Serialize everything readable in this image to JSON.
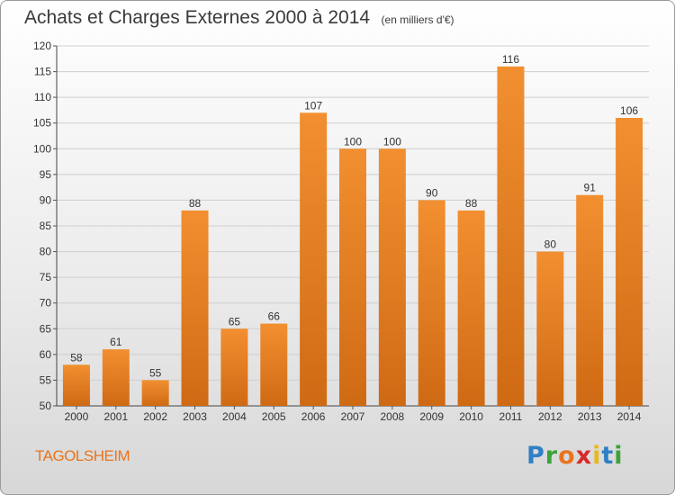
{
  "title": "Achats et Charges Externes 2000 à 2014",
  "unit_note": "(en milliers d'€)",
  "city": "TAGOLSHEIM",
  "logo": {
    "letters": [
      "P",
      "r",
      "o",
      "x",
      "i",
      "t",
      "i"
    ],
    "colors": [
      "#2f7fc7",
      "#3aa33a",
      "#e8741e",
      "#d52b2b",
      "#e8b81e",
      "#2f7fc7",
      "#3aa33a"
    ]
  },
  "colors": {
    "bar": "#f28f30",
    "bar_dark": "#cf6a14",
    "accent": "#e8741e"
  },
  "chart_data": {
    "type": "bar",
    "title": "Achats et Charges Externes 2000 à 2014",
    "categories": [
      "2000",
      "2001",
      "2002",
      "2003",
      "2004",
      "2005",
      "2006",
      "2007",
      "2008",
      "2009",
      "2010",
      "2011",
      "2012",
      "2013",
      "2014"
    ],
    "values": [
      58,
      61,
      55,
      88,
      65,
      66,
      107,
      100,
      100,
      90,
      88,
      116,
      80,
      91,
      106
    ],
    "ylim": [
      50,
      120
    ],
    "yticks": [
      50,
      55,
      60,
      65,
      70,
      75,
      80,
      85,
      90,
      95,
      100,
      105,
      110,
      115,
      120
    ],
    "grid": true,
    "xlabel": "",
    "ylabel": ""
  }
}
